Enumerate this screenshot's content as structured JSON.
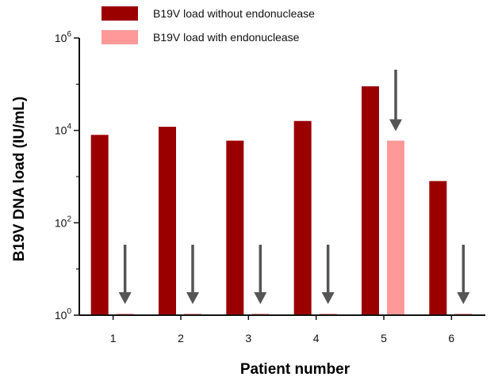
{
  "chart_data": {
    "type": "bar",
    "scale": "log10",
    "categories": [
      "1",
      "2",
      "3",
      "4",
      "5",
      "6"
    ],
    "series": [
      {
        "name": "B19V load without endonuclease",
        "color": "#9b0000",
        "values": [
          8000,
          12000,
          6000,
          16000,
          90000,
          800
        ]
      },
      {
        "name": "B19V load with endonuclease",
        "color": "#ff9999",
        "values": [
          1,
          1,
          1,
          1,
          6000,
          1
        ]
      }
    ],
    "ylim": [
      1,
      1000000
    ],
    "y_ticks": [
      {
        "base": "10",
        "exp": "0",
        "value": 1
      },
      {
        "base": "10",
        "exp": "2",
        "value": 100
      },
      {
        "base": "10",
        "exp": "4",
        "value": 10000
      },
      {
        "base": "10",
        "exp": "6",
        "value": 1000000
      }
    ],
    "xlabel": "Patient number",
    "ylabel": "B19V DNA load (IU/mL)",
    "legend_position": "top-left",
    "arrow_color": "#555555",
    "arrows": [
      {
        "category": "1"
      },
      {
        "category": "2"
      },
      {
        "category": "3"
      },
      {
        "category": "4"
      },
      {
        "category": "5"
      },
      {
        "category": "6"
      }
    ]
  }
}
